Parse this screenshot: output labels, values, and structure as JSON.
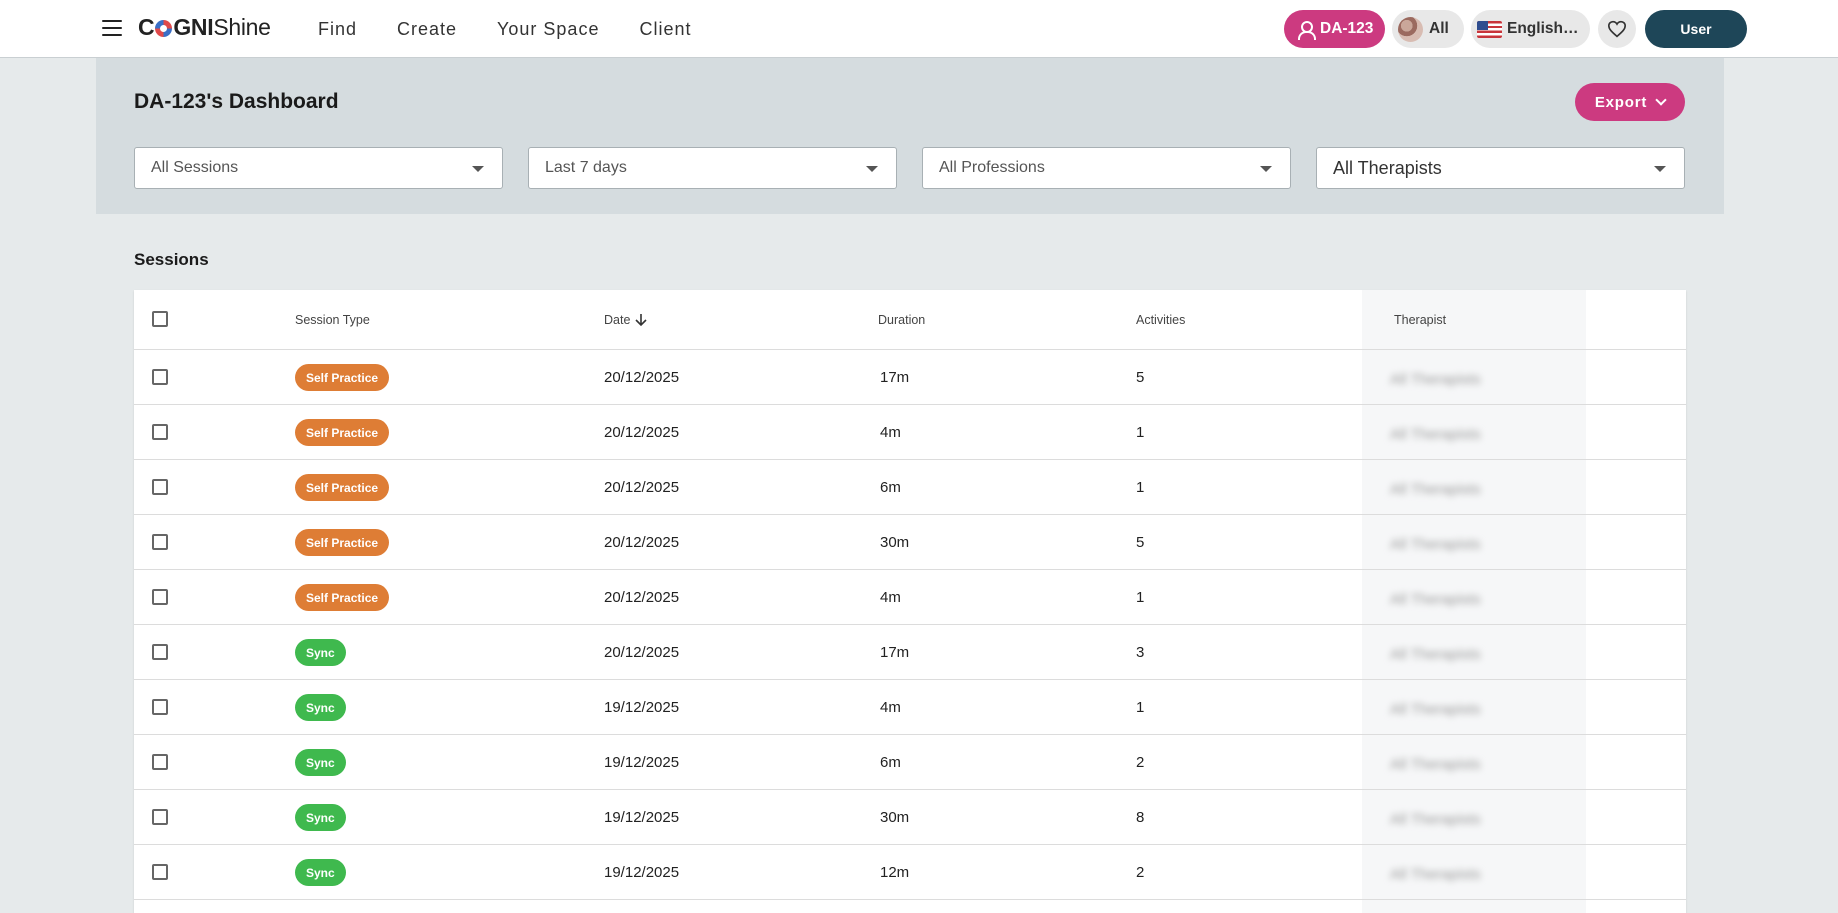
{
  "brand": {
    "part1": "C",
    "part2": "GNI",
    "part3": "Shine"
  },
  "nav": [
    "Find",
    "Create",
    "Your Space",
    "Client"
  ],
  "header_actions": {
    "user_pill": "DA-123",
    "all_pill": "All",
    "language": "English…",
    "login": "User"
  },
  "page": {
    "title": "DA-123's Dashboard",
    "export_label": "Export"
  },
  "filters": {
    "sessions": "All Sessions",
    "period": "Last 7 days",
    "professions": "All Professions",
    "therapists": "All Therapists"
  },
  "section_title": "Sessions",
  "table": {
    "headers": {
      "type": "Session Type",
      "date": "Date",
      "duration": "Duration",
      "activities": "Activities",
      "therapist": "Therapist"
    },
    "rows": [
      {
        "type": "Self Practice",
        "date": "20/12/2025",
        "duration": "17m",
        "activities": "5",
        "therapist": "All Therapists"
      },
      {
        "type": "Self Practice",
        "date": "20/12/2025",
        "duration": "4m",
        "activities": "1",
        "therapist": "All Therapists"
      },
      {
        "type": "Self Practice",
        "date": "20/12/2025",
        "duration": "6m",
        "activities": "1",
        "therapist": "All Therapists"
      },
      {
        "type": "Self Practice",
        "date": "20/12/2025",
        "duration": "30m",
        "activities": "5",
        "therapist": "All Therapists"
      },
      {
        "type": "Self Practice",
        "date": "20/12/2025",
        "duration": "4m",
        "activities": "1",
        "therapist": "All Therapists"
      },
      {
        "type": "Sync",
        "date": "20/12/2025",
        "duration": "17m",
        "activities": "3",
        "therapist": "All Therapists"
      },
      {
        "type": "Sync",
        "date": "19/12/2025",
        "duration": "4m",
        "activities": "1",
        "therapist": "All Therapists"
      },
      {
        "type": "Sync",
        "date": "19/12/2025",
        "duration": "6m",
        "activities": "2",
        "therapist": "All Therapists"
      },
      {
        "type": "Sync",
        "date": "19/12/2025",
        "duration": "30m",
        "activities": "8",
        "therapist": "All Therapists"
      },
      {
        "type": "Sync",
        "date": "19/12/2025",
        "duration": "12m",
        "activities": "2",
        "therapist": "All Therapists"
      }
    ]
  },
  "colors": {
    "accent": "#cc3a80",
    "self_practice": "#de7d35",
    "sync": "#3fb94e",
    "login": "#1e4658"
  }
}
